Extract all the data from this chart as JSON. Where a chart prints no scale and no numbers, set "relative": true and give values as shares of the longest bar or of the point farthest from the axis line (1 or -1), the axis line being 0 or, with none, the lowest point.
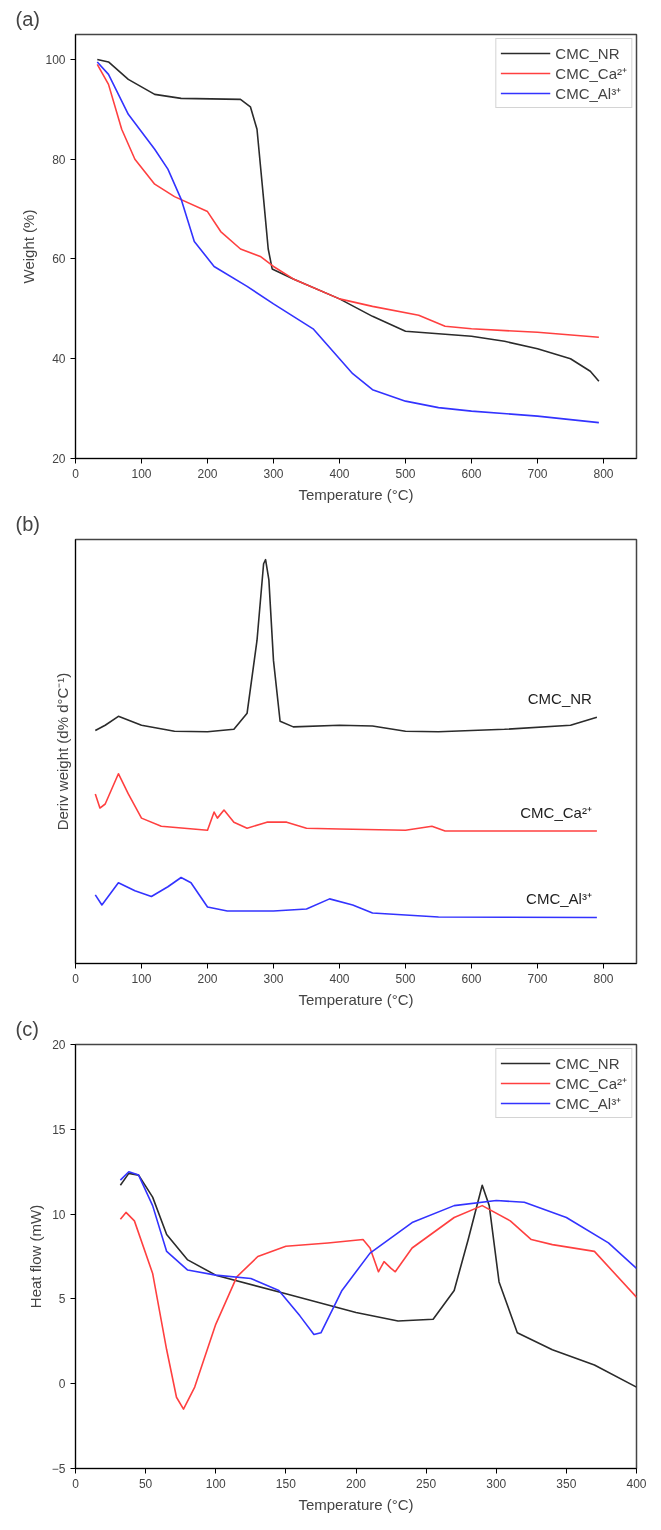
{
  "chart_data": [
    {
      "type": "line",
      "title": "(a)",
      "xlabel": "Temperature (°C)",
      "ylabel": "Weight (%)",
      "xlim": [
        0,
        850
      ],
      "ylim": [
        20,
        105
      ],
      "xticks": [
        0,
        100,
        200,
        300,
        400,
        500,
        600,
        700,
        800
      ],
      "yticks": [
        20,
        40,
        60,
        80,
        100
      ],
      "grid": false,
      "legend": "top right",
      "line_style": "solid",
      "marker": "none",
      "series": [
        {
          "name": "CMC_NR",
          "color": "#2b2b2b",
          "x": [
            33,
            50,
            80,
            120,
            160,
            250,
            265,
            275,
            285,
            292,
            298,
            330,
            400,
            450,
            500,
            550,
            600,
            650,
            700,
            750,
            780,
            793
          ],
          "values": [
            100,
            99.5,
            96,
            93,
            92.2,
            92,
            90.5,
            86,
            72,
            62,
            58,
            56,
            52,
            48.5,
            45.5,
            45,
            44.5,
            43.5,
            42,
            40,
            37.5,
            35.5
          ]
        },
        {
          "name": "CMC_Ca²⁺",
          "color": "#ff4040",
          "x": [
            33,
            50,
            70,
            90,
            120,
            150,
            200,
            220,
            250,
            280,
            300,
            330,
            400,
            450,
            520,
            560,
            600,
            700,
            793
          ],
          "values": [
            99,
            95,
            86,
            80,
            75,
            72.5,
            69.5,
            65.5,
            62,
            60.5,
            58.5,
            56,
            52,
            50.5,
            48.7,
            46.5,
            46,
            45.3,
            44.3
          ]
        },
        {
          "name": "CMC_Al³⁺",
          "color": "#3333ff",
          "x": [
            33,
            50,
            80,
            120,
            140,
            160,
            180,
            210,
            260,
            300,
            360,
            380,
            420,
            450,
            500,
            550,
            600,
            700,
            793
          ],
          "values": [
            99.5,
            97,
            89,
            82,
            78,
            72,
            63.5,
            58.5,
            54.5,
            51,
            46,
            43,
            37,
            33.8,
            31.5,
            30.2,
            29.5,
            28.5,
            27.2
          ]
        }
      ]
    },
    {
      "type": "line",
      "title": "(b)",
      "xlabel": "Temperature (°C)",
      "ylabel": "Deriv weight (d% d°C⁻¹)",
      "xlim": [
        0,
        850
      ],
      "xticks": [
        0,
        100,
        200,
        300,
        400,
        500,
        600,
        700,
        800
      ],
      "relative": true,
      "grid": false,
      "legend": false,
      "line_style": "solid",
      "marker": "none",
      "series": [
        {
          "name": "CMC_NR",
          "color": "#2b2b2b",
          "x": [
            30,
            45,
            65,
            100,
            150,
            200,
            240,
            260,
            275,
            285,
            288,
            293,
            300,
            310,
            330,
            400,
            450,
            500,
            550,
            650,
            750,
            790
          ],
          "values": [
            0.577,
            0.59,
            0.612,
            0.59,
            0.575,
            0.574,
            0.58,
            0.62,
            0.8,
            0.99,
            1.0,
            0.95,
            0.75,
            0.6,
            0.586,
            0.59,
            0.588,
            0.575,
            0.574,
            0.58,
            0.59,
            0.61
          ]
        },
        {
          "name": "CMC_Ca²⁺",
          "color": "#ff4040",
          "x": [
            30,
            37,
            45,
            65,
            80,
            100,
            130,
            200,
            210,
            215,
            225,
            240,
            260,
            290,
            320,
            350,
            400,
            500,
            540,
            560,
            790
          ],
          "values": [
            0.42,
            0.385,
            0.395,
            0.47,
            0.42,
            0.36,
            0.34,
            0.33,
            0.375,
            0.36,
            0.38,
            0.35,
            0.335,
            0.35,
            0.35,
            0.335,
            0.333,
            0.33,
            0.34,
            0.328,
            0.328
          ]
        },
        {
          "name": "CMC_Al³⁺",
          "color": "#3333ff",
          "x": [
            30,
            40,
            65,
            90,
            115,
            140,
            160,
            175,
            200,
            230,
            300,
            350,
            385,
            420,
            450,
            550,
            790
          ],
          "values": [
            0.17,
            0.145,
            0.2,
            0.18,
            0.166,
            0.19,
            0.213,
            0.2,
            0.14,
            0.13,
            0.13,
            0.135,
            0.16,
            0.145,
            0.125,
            0.115,
            0.114
          ]
        }
      ]
    },
    {
      "type": "line",
      "title": "(c)",
      "xlabel": "Temperature (°C)",
      "ylabel": "Heat flow (mW)",
      "xlim": [
        0,
        400
      ],
      "ylim": [
        -5,
        20
      ],
      "xticks": [
        0,
        50,
        100,
        150,
        200,
        250,
        300,
        350,
        400
      ],
      "yticks": [
        -5,
        0,
        5,
        10,
        15,
        20
      ],
      "grid": false,
      "legend": "top right",
      "line_style": "solid",
      "marker": "none",
      "series": [
        {
          "name": "CMC_NR",
          "color": "#2b2b2b",
          "x": [
            32,
            38,
            45,
            55,
            65,
            80,
            100,
            150,
            200,
            230,
            255,
            270,
            280,
            290,
            295,
            302,
            315,
            340,
            370,
            400
          ],
          "values": [
            11.7,
            12.4,
            12.3,
            11,
            8.8,
            7.3,
            6.4,
            5.3,
            4.2,
            3.7,
            3.8,
            5.5,
            8.5,
            11.7,
            10.5,
            6,
            3,
            2,
            1.1,
            -0.2
          ]
        },
        {
          "name": "CMC_Ca²⁺",
          "color": "#ff4040",
          "x": [
            32,
            36,
            42,
            55,
            65,
            72,
            77,
            85,
            100,
            115,
            130,
            150,
            180,
            205,
            210,
            216,
            220,
            225,
            228,
            240,
            270,
            290,
            310,
            325,
            340,
            370,
            400
          ],
          "values": [
            9.7,
            10.1,
            9.6,
            6.5,
            2,
            -0.8,
            -1.5,
            -0.2,
            3.5,
            6.3,
            7.5,
            8.1,
            8.3,
            8.5,
            8,
            6.6,
            7.2,
            6.8,
            6.6,
            8,
            9.8,
            10.5,
            9.6,
            8.5,
            8.2,
            7.8,
            5.1
          ]
        },
        {
          "name": "CMC_Al³⁺",
          "color": "#3333ff",
          "x": [
            32,
            38,
            45,
            55,
            65,
            80,
            100,
            125,
            145,
            160,
            170,
            175,
            190,
            210,
            240,
            270,
            300,
            320,
            350,
            380,
            400
          ],
          "values": [
            12,
            12.5,
            12.3,
            10.5,
            7.8,
            6.7,
            6.4,
            6.2,
            5.5,
            4,
            2.9,
            3,
            5.5,
            7.7,
            9.5,
            10.5,
            10.8,
            10.7,
            9.8,
            8.3,
            6.8
          ]
        }
      ]
    }
  ]
}
